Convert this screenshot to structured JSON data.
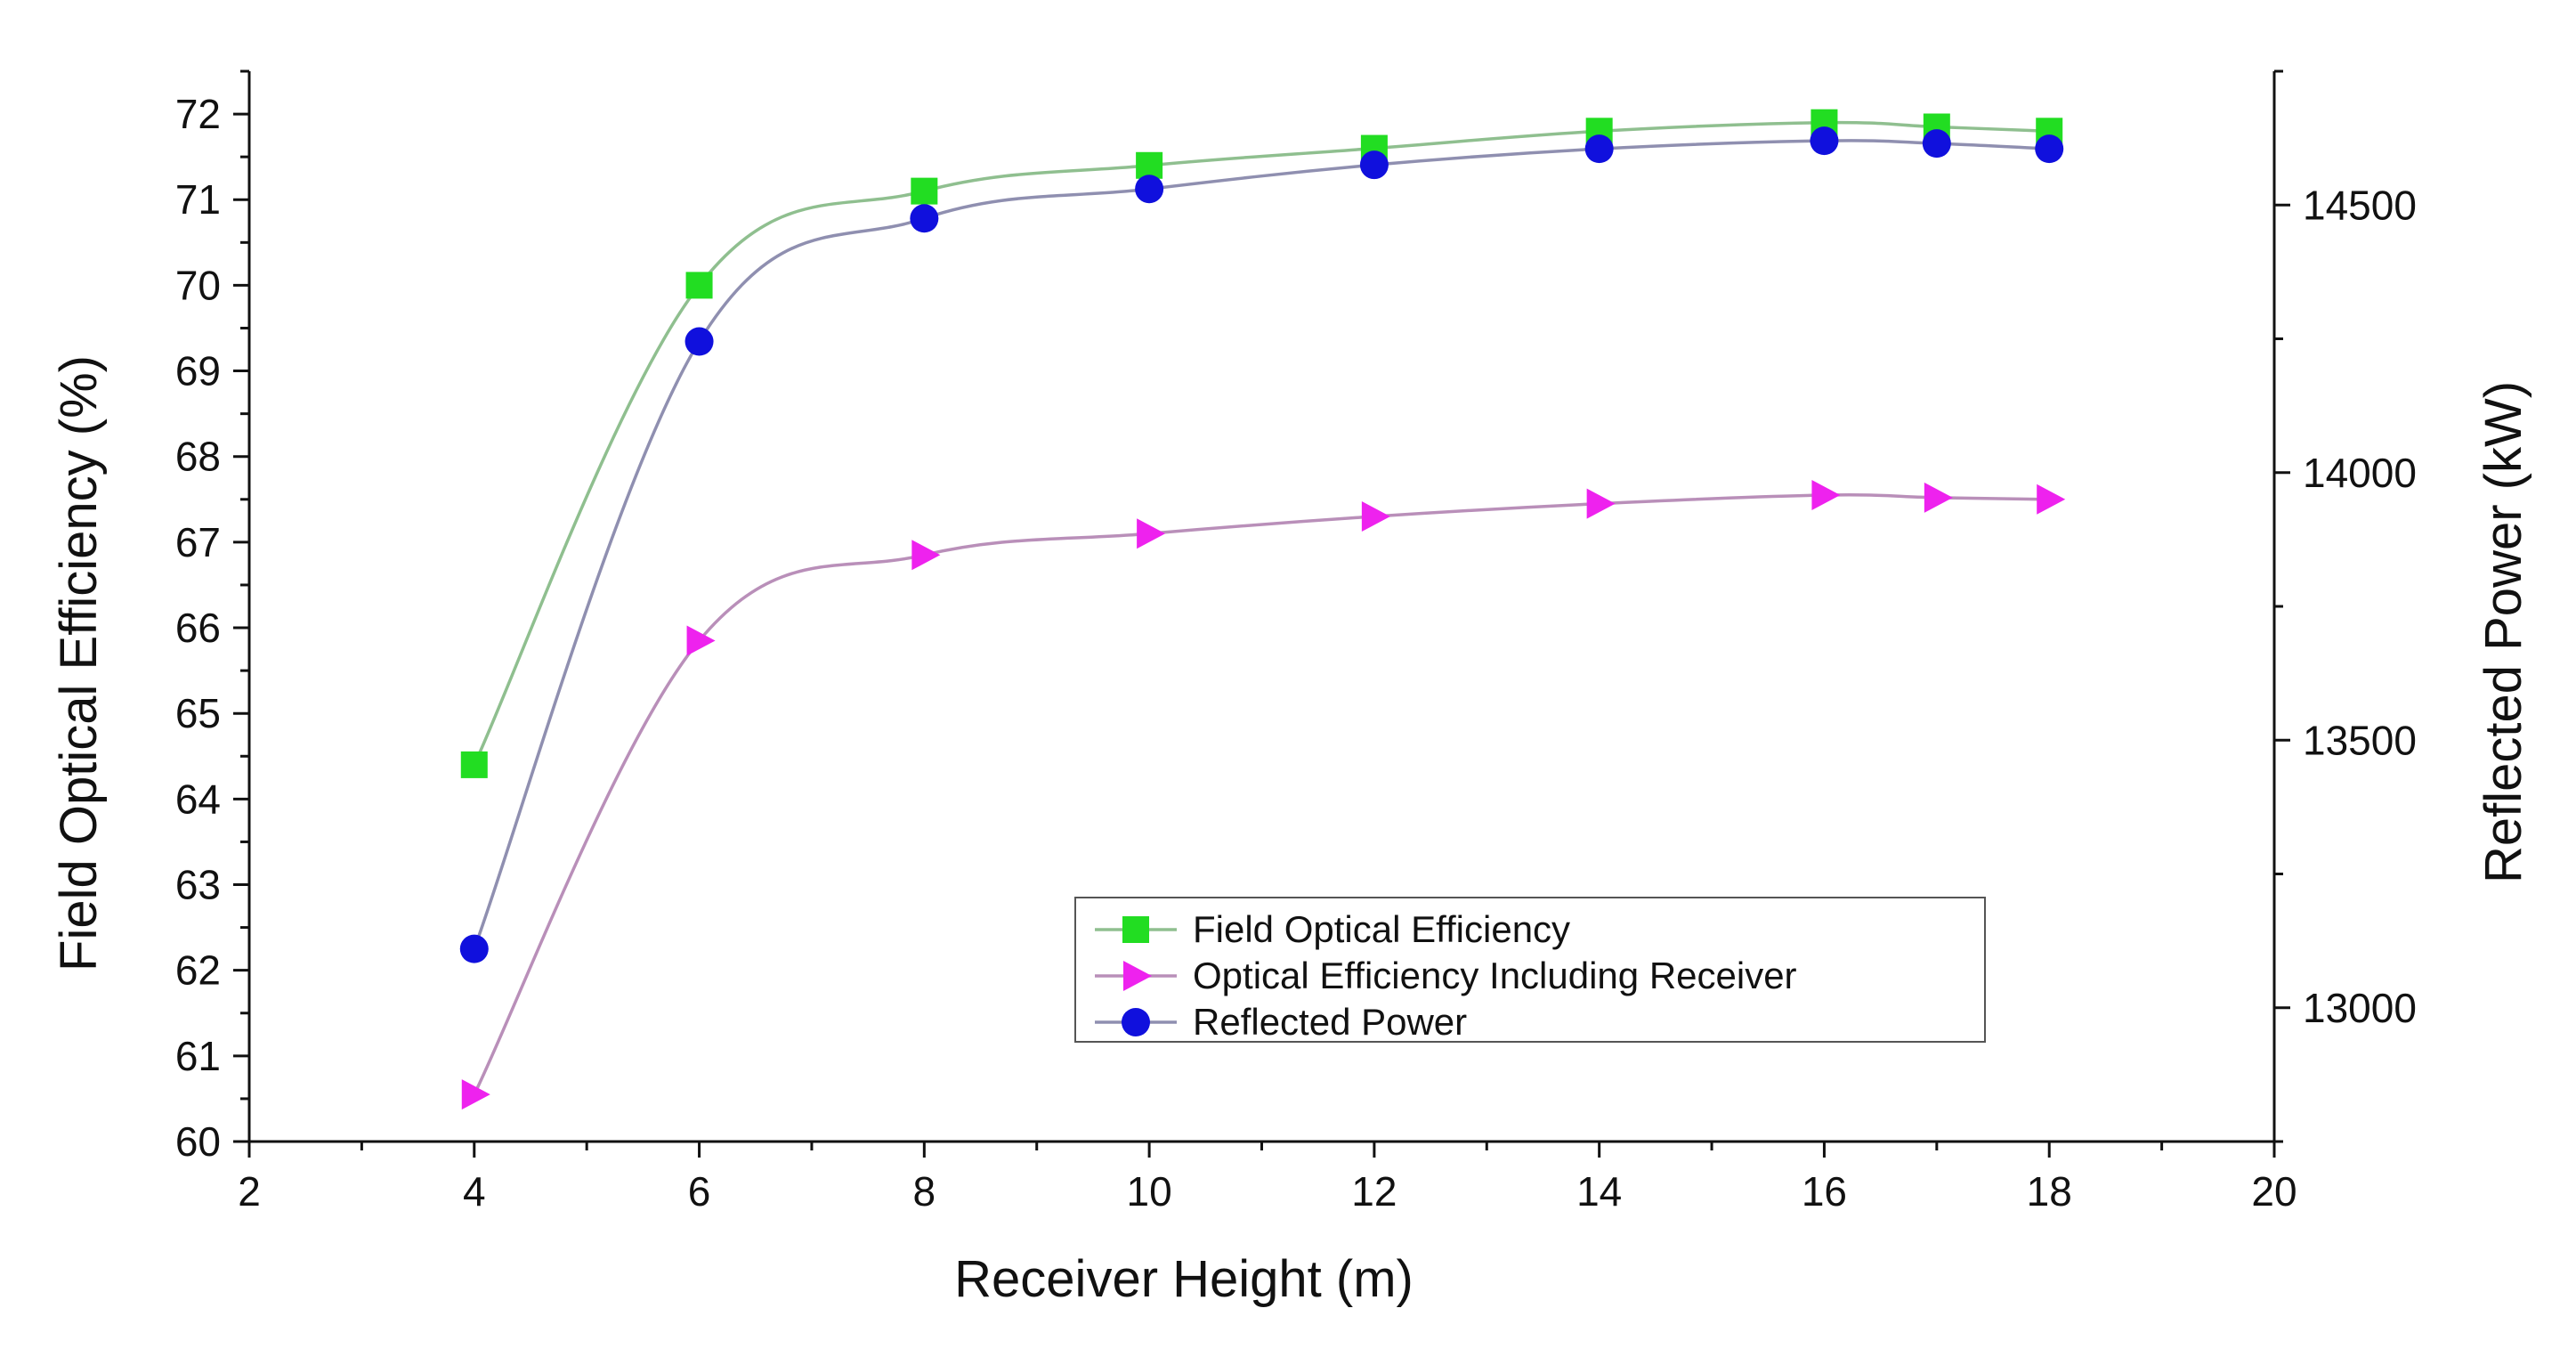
{
  "chart_data": {
    "type": "line",
    "title": "",
    "xlabel": "Receiver Height (m)",
    "ylabel_left": "Field Optical Efficiency (%)",
    "ylabel_right": "Reflected Power (kW)",
    "xlim": [
      2,
      20
    ],
    "ylim_left": [
      60,
      72.5
    ],
    "ylim_right": [
      12750,
      14750
    ],
    "x_ticks": [
      2,
      4,
      6,
      8,
      10,
      12,
      14,
      16,
      18,
      20
    ],
    "y_ticks_left": [
      60,
      61,
      62,
      63,
      64,
      65,
      66,
      67,
      68,
      69,
      70,
      71,
      72
    ],
    "y_ticks_right": [
      13000,
      13500,
      14000,
      14500
    ],
    "legend_position": "lower-right-center",
    "grid": false,
    "series": [
      {
        "name": "Field Optical Efficiency",
        "axis": "left",
        "marker": "square",
        "color": "#22dd22",
        "line_color": "#8fbf8f",
        "x": [
          4,
          6,
          8,
          10,
          12,
          14,
          16,
          17,
          18
        ],
        "values": [
          64.4,
          70.0,
          71.1,
          71.4,
          71.6,
          71.8,
          71.9,
          71.85,
          71.8
        ]
      },
      {
        "name": "Optical Efficiency Including Receiver",
        "axis": "left",
        "marker": "triangle-right",
        "color": "#ee22ee",
        "line_color": "#b98fb9",
        "x": [
          4,
          6,
          8,
          10,
          12,
          14,
          16,
          17,
          18
        ],
        "values": [
          60.55,
          65.85,
          66.85,
          67.1,
          67.3,
          67.45,
          67.55,
          67.52,
          67.5
        ]
      },
      {
        "name": "Reflected Power",
        "axis": "right",
        "marker": "circle",
        "color": "#1010dd",
        "line_color": "#8f8fb0",
        "x": [
          4,
          6,
          8,
          10,
          12,
          14,
          16,
          17,
          18
        ],
        "values": [
          13110,
          14245,
          14475,
          14530,
          14575,
          14605,
          14620,
          14615,
          14605
        ]
      }
    ]
  }
}
